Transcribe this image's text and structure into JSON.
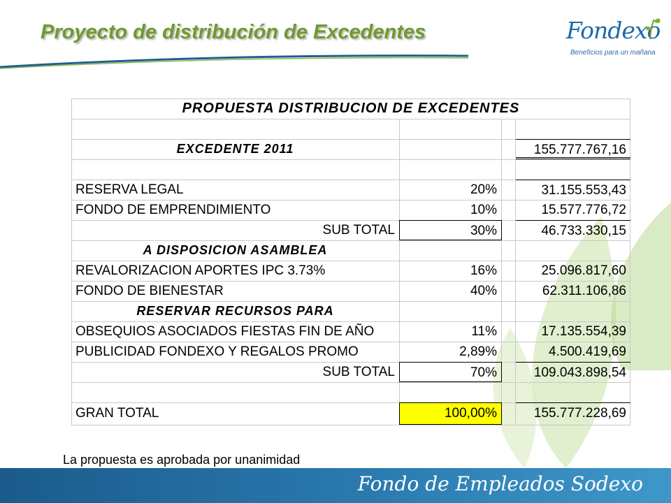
{
  "header": {
    "title": "Proyecto de distribución de Excedentes",
    "logo_word": "Fondexo",
    "logo_tagline": "Beneficios para un mañana"
  },
  "table": {
    "heading": "PROPUESTA  DISTRIBUCION DE EXCEDENTES",
    "excedente_label": "EXCEDENTE 2011",
    "excedente_value": "155.777.767,16",
    "rows": [
      {
        "label": "RESERVA LEGAL",
        "pct": "20%",
        "value": "31.155.553,43"
      },
      {
        "label": "FONDO DE EMPRENDIMIENTO",
        "pct": "10%",
        "value": "15.577.776,72"
      }
    ],
    "subtotal1": {
      "label": "SUB TOTAL",
      "pct": "30%",
      "value": "46.733.330,15"
    },
    "section_asamblea": "A DISPOSICION ASAMBLEA",
    "rows_asamblea": [
      {
        "label": "REVALORIZACION APORTES  IPC 3.73%",
        "pct": "16%",
        "value": "25.096.817,60"
      },
      {
        "label": "FONDO DE BIENESTAR",
        "pct": "40%",
        "value": "62.311.106,86"
      }
    ],
    "section_reservar": "RESERVAR RECURSOS PARA",
    "rows_reservar": [
      {
        "label": "OBSEQUIOS ASOCIADOS FIESTAS FIN DE AÑO",
        "pct": "11%",
        "value": "17.135.554,39"
      },
      {
        "label": "PUBLICIDAD FONDEXO Y REGALOS PROMO",
        "pct": "2,89%",
        "value": "4.500.419,69"
      }
    ],
    "subtotal2": {
      "label": "SUB TOTAL",
      "pct": "70%",
      "value": "109.043.898,54"
    },
    "gran_total": {
      "label": "GRAN TOTAL",
      "pct": "100,00%",
      "value": "155.777.228,69"
    }
  },
  "note": "La propuesta es aprobada por unanimidad",
  "footer": {
    "text": "Fondo de Empleados Sodexo"
  },
  "colors": {
    "title_green": "#6f9a2e",
    "footer_blue": "#1b5b8c",
    "highlight_yellow": "#ffff00"
  }
}
